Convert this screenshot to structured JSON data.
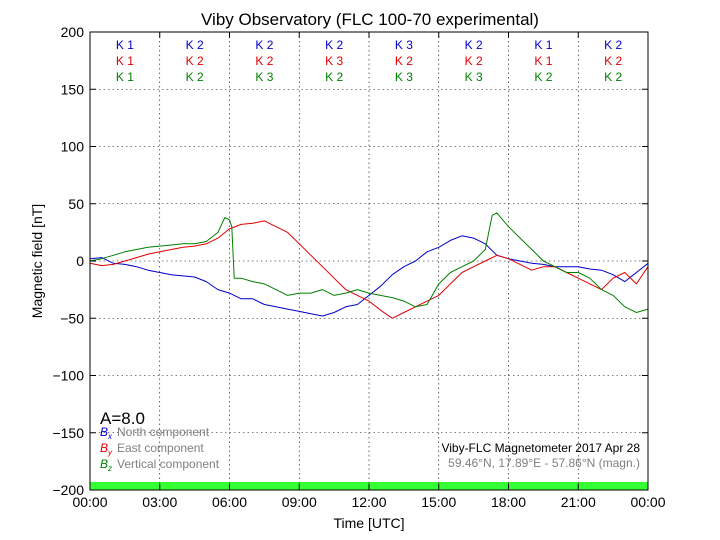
{
  "chart_data": {
    "type": "line",
    "title": "Viby Observatory (FLC 100-70 experimental)",
    "xlabel": "Time [UTC]",
    "ylabel": "Magnetic field [nT]",
    "xlim": [
      0,
      24
    ],
    "ylim": [
      -200,
      200
    ],
    "x_ticks": [
      0,
      3,
      6,
      9,
      12,
      15,
      18,
      21,
      24
    ],
    "x_tick_labels": [
      "00:00",
      "03:00",
      "06:00",
      "09:00",
      "12:00",
      "15:00",
      "18:00",
      "21:00",
      "00:00"
    ],
    "y_ticks": [
      200,
      150,
      100,
      50,
      0,
      -50,
      -100,
      -150,
      -200
    ],
    "y_tick_labels": [
      "200",
      "150",
      "100",
      "50",
      "0",
      "−50",
      "−100",
      "−150",
      "−200"
    ],
    "grid": true,
    "k_index_rows": [
      {
        "color": "#0000cc",
        "values": [
          "K 1",
          "K 2",
          "K 2",
          "K 2",
          "K 3",
          "K 2",
          "K 1",
          "K 2"
        ]
      },
      {
        "color": "#e00000",
        "values": [
          "K 1",
          "K 2",
          "K 2",
          "K 3",
          "K 2",
          "K 2",
          "K 1",
          "K 2"
        ]
      },
      {
        "color": "#008000",
        "values": [
          "K 1",
          "K 2",
          "K 3",
          "K 2",
          "K 3",
          "K 3",
          "K 2",
          "K 2"
        ]
      }
    ],
    "a_index": "A=8.0",
    "legend": [
      {
        "symbol": "B",
        "sub": "x",
        "text": "North component",
        "color": "#0000cc"
      },
      {
        "symbol": "B",
        "sub": "y",
        "text": "East component",
        "color": "#e00000"
      },
      {
        "symbol": "B",
        "sub": "z",
        "text": "Vertical component",
        "color": "#008000"
      }
    ],
    "legend_placement": "bottom-left",
    "info_line1": "Viby-FLC Magnetometer 2017 Apr 28",
    "info_line2": "59.46°N, 17.89°E - 57.86°N (magn.)",
    "band": {
      "from": -200,
      "to": -193,
      "color": "#33ff33"
    },
    "series": [
      {
        "color": "#0000cc",
        "x": [
          0,
          0.5,
          1,
          1.5,
          2,
          2.5,
          3,
          3.5,
          4,
          4.5,
          5,
          5.5,
          6,
          6.5,
          7,
          7.5,
          8,
          8.5,
          9,
          9.5,
          10,
          10.5,
          11,
          11.5,
          12,
          12.5,
          13,
          13.5,
          14,
          14.5,
          15,
          15.5,
          16,
          16.5,
          17,
          17.5,
          18,
          18.5,
          19,
          19.5,
          20,
          20.5,
          21,
          21.5,
          22,
          22.5,
          23,
          23.5,
          24
        ],
        "y": [
          2,
          3,
          -2,
          -3,
          -5,
          -8,
          -10,
          -12,
          -13,
          -14,
          -18,
          -25,
          -28,
          -33,
          -33,
          -38,
          -40,
          -42,
          -44,
          -46,
          -48,
          -45,
          -40,
          -38,
          -30,
          -22,
          -12,
          -5,
          0,
          8,
          12,
          18,
          22,
          20,
          15,
          5,
          2,
          0,
          -2,
          -3,
          -5,
          -5,
          -5,
          -7,
          -8,
          -12,
          -18,
          -10,
          -2
        ]
      },
      {
        "color": "#e00000",
        "x": [
          0,
          0.5,
          1,
          1.5,
          2,
          2.5,
          3,
          3.5,
          4,
          4.5,
          5,
          5.5,
          6,
          6.5,
          7,
          7.5,
          8,
          8.5,
          9,
          9.5,
          10,
          10.5,
          11,
          11.5,
          12,
          12.5,
          13,
          13.5,
          14,
          14.5,
          15,
          15.5,
          16,
          16.5,
          17,
          17.5,
          18,
          18.5,
          19,
          19.5,
          20,
          20.5,
          21,
          21.5,
          22,
          22.5,
          23,
          23.5,
          24
        ],
        "y": [
          -2,
          -4,
          -3,
          0,
          3,
          6,
          8,
          10,
          12,
          13,
          15,
          20,
          28,
          32,
          33,
          35,
          30,
          25,
          15,
          5,
          -5,
          -15,
          -25,
          -30,
          -35,
          -43,
          -50,
          -45,
          -40,
          -35,
          -30,
          -20,
          -10,
          -5,
          0,
          5,
          2,
          -3,
          -8,
          -5,
          -5,
          -10,
          -15,
          -20,
          -25,
          -15,
          -10,
          -20,
          -5
        ]
      },
      {
        "color": "#008000",
        "x": [
          0,
          0.5,
          1,
          1.5,
          2,
          2.5,
          3,
          3.5,
          4,
          4.5,
          5,
          5.5,
          5.8,
          6,
          6.1,
          6.2,
          6.5,
          7,
          7.5,
          8,
          8.5,
          9,
          9.5,
          10,
          10.5,
          11,
          11.5,
          12,
          12.5,
          13,
          13.5,
          14,
          14.5,
          15,
          15.5,
          16,
          16.5,
          17,
          17.3,
          17.5,
          18,
          18.5,
          19,
          19.5,
          20,
          20.5,
          21,
          21.5,
          22,
          22.5,
          23,
          23.5,
          24
        ],
        "y": [
          0,
          2,
          5,
          8,
          10,
          12,
          13,
          14,
          15,
          15,
          17,
          25,
          38,
          36,
          30,
          -15,
          -15,
          -18,
          -20,
          -25,
          -30,
          -28,
          -28,
          -25,
          -30,
          -28,
          -25,
          -28,
          -30,
          -32,
          -35,
          -40,
          -38,
          -20,
          -10,
          -5,
          0,
          10,
          40,
          42,
          30,
          20,
          10,
          0,
          -5,
          -10,
          -10,
          -15,
          -25,
          -30,
          -40,
          -45,
          -42
        ]
      }
    ]
  }
}
